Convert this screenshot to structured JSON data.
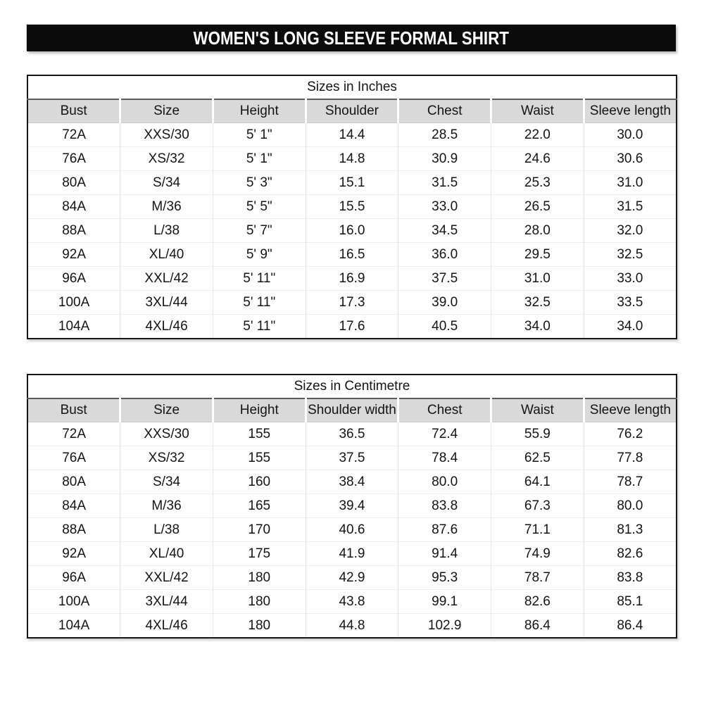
{
  "banner": {
    "title": "WOMEN'S LONG SLEEVE FORMAL SHIRT",
    "bg_color": "#0b0b0b",
    "text_color": "#ffffff"
  },
  "colors": {
    "header_row_bg": "#d9d9d9",
    "table_border": "#161616",
    "page_bg": "#ffffff"
  },
  "tables": [
    {
      "title": "Sizes in Inches",
      "columns": [
        "Bust",
        "Size",
        "Height",
        "Shoulder",
        "Chest",
        "Waist",
        "Sleeve length"
      ],
      "rows": [
        [
          "72A",
          "XXS/30",
          "5' 1\"",
          "14.4",
          "28.5",
          "22.0",
          "30.0"
        ],
        [
          "76A",
          "XS/32",
          "5' 1\"",
          "14.8",
          "30.9",
          "24.6",
          "30.6"
        ],
        [
          "80A",
          "S/34",
          "5' 3\"",
          "15.1",
          "31.5",
          "25.3",
          "31.0"
        ],
        [
          "84A",
          "M/36",
          "5' 5\"",
          "15.5",
          "33.0",
          "26.5",
          "31.5"
        ],
        [
          "88A",
          "L/38",
          "5' 7\"",
          "16.0",
          "34.5",
          "28.0",
          "32.0"
        ],
        [
          "92A",
          "XL/40",
          "5' 9\"",
          "16.5",
          "36.0",
          "29.5",
          "32.5"
        ],
        [
          "96A",
          "XXL/42",
          "5' 11\"",
          "16.9",
          "37.5",
          "31.0",
          "33.0"
        ],
        [
          "100A",
          "3XL/44",
          "5' 11\"",
          "17.3",
          "39.0",
          "32.5",
          "33.5"
        ],
        [
          "104A",
          "4XL/46",
          "5' 11\"",
          "17.6",
          "40.5",
          "34.0",
          "34.0"
        ]
      ]
    },
    {
      "title": "Sizes in Centimetre",
      "columns": [
        "Bust",
        "Size",
        "Height",
        "Shoulder width",
        "Chest",
        "Waist",
        "Sleeve length"
      ],
      "rows": [
        [
          "72A",
          "XXS/30",
          "155",
          "36.5",
          "72.4",
          "55.9",
          "76.2"
        ],
        [
          "76A",
          "XS/32",
          "155",
          "37.5",
          "78.4",
          "62.5",
          "77.8"
        ],
        [
          "80A",
          "S/34",
          "160",
          "38.4",
          "80.0",
          "64.1",
          "78.7"
        ],
        [
          "84A",
          "M/36",
          "165",
          "39.4",
          "83.8",
          "67.3",
          "80.0"
        ],
        [
          "88A",
          "L/38",
          "170",
          "40.6",
          "87.6",
          "71.1",
          "81.3"
        ],
        [
          "92A",
          "XL/40",
          "175",
          "41.9",
          "91.4",
          "74.9",
          "82.6"
        ],
        [
          "96A",
          "XXL/42",
          "180",
          "42.9",
          "95.3",
          "78.7",
          "83.8"
        ],
        [
          "100A",
          "3XL/44",
          "180",
          "43.8",
          "99.1",
          "82.6",
          "85.1"
        ],
        [
          "104A",
          "4XL/46",
          "180",
          "44.8",
          "102.9",
          "86.4",
          "86.4"
        ]
      ]
    }
  ]
}
